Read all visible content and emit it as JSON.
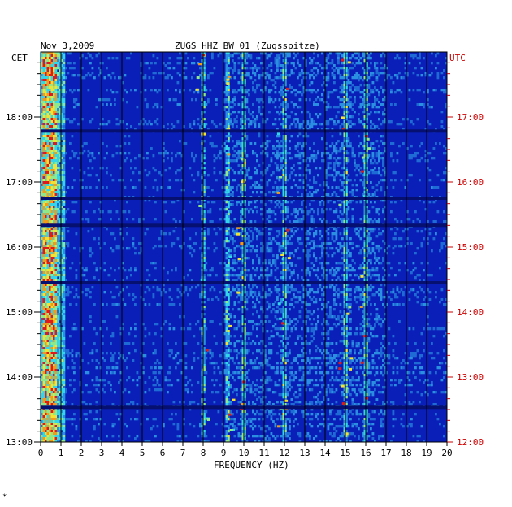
{
  "header": {
    "date": "Nov 3,2009",
    "station": "ZUGS HHZ BW 01 (Zugsspitze)"
  },
  "chart_data": {
    "type": "heatmap",
    "title": "ZUGS HHZ BW 01 (Zugsspitze)",
    "xlabel": "FREQUENCY (HZ)",
    "xlim": [
      0,
      20
    ],
    "x_ticks": [
      "0",
      "1",
      "2",
      "3",
      "4",
      "5",
      "6",
      "7",
      "8",
      "9",
      "10",
      "11",
      "12",
      "13",
      "14",
      "15",
      "16",
      "17",
      "18",
      "19",
      "20"
    ],
    "left_axis": {
      "label": "CET",
      "ticks": [
        "18:00",
        "17:00",
        "16:00",
        "15:00",
        "14:00",
        "13:00"
      ],
      "ylim": [
        "13:00",
        "19:00"
      ]
    },
    "right_axis": {
      "label": "UTC",
      "ticks": [
        "17:00",
        "16:00",
        "15:00",
        "14:00",
        "13:00",
        "12:00"
      ],
      "ylim": [
        "12:00",
        "18:00"
      ]
    },
    "colors": {
      "background_low": "#0a1fb8",
      "mid": "#1f6bd6",
      "cyan": "#33d6e8",
      "yellow": "#f2e233",
      "red": "#e01a1a",
      "dark_band": "#061070",
      "utc_label": "#cc0000"
    },
    "features": {
      "low_freq_energy_hz": [
        0.1,
        0.8
      ],
      "dominant_spectral_lines_hz": [
        8,
        9.2,
        10,
        12,
        15,
        16
      ],
      "dark_gap_times_cet": [
        "17:47",
        "16:45",
        "16:20",
        "15:27",
        "13:32"
      ]
    }
  },
  "footnote": "*"
}
